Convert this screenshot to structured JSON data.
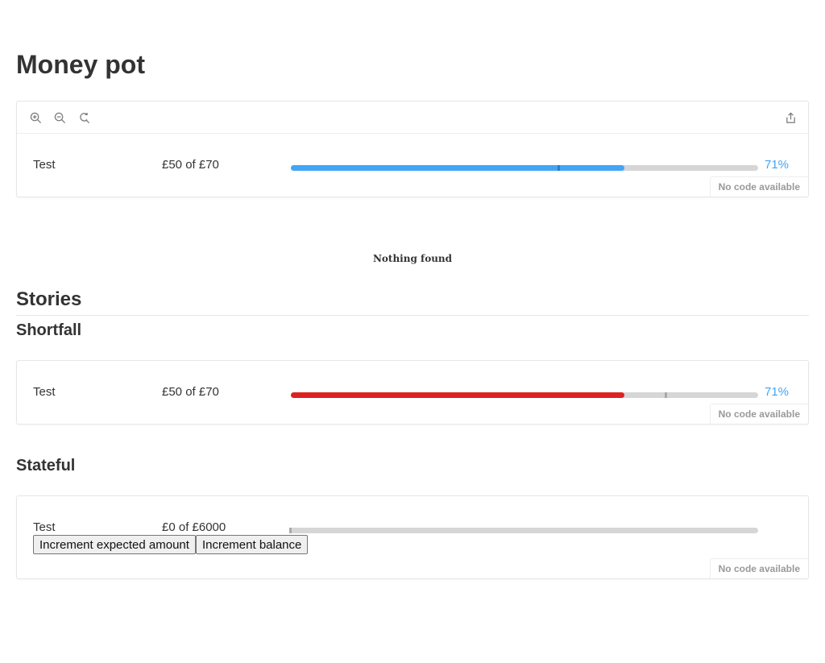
{
  "page": {
    "title": "Money pot"
  },
  "toolbar": {
    "icons": [
      "zoom-in-icon",
      "zoom-out-icon",
      "reset-zoom-icon",
      "share-icon"
    ]
  },
  "preview": {
    "label": "Test",
    "amount": "£50 of £70",
    "percent": "71%",
    "progress": 0.714,
    "marker": 0.57,
    "fill_color": "#42a5f5",
    "marker_color": "#2a7fc4",
    "code_tag": "No code available"
  },
  "empty": {
    "text": "Nothing found"
  },
  "stories": {
    "heading": "Stories",
    "shortfall": {
      "heading": "Shortfall",
      "label": "Test",
      "amount": "£50 of £70",
      "percent": "71%",
      "progress": 0.714,
      "marker": 0.8,
      "fill_color": "#dd2222",
      "marker_color": "#aaaaaa",
      "code_tag": "No code available"
    },
    "stateful": {
      "heading": "Stateful",
      "label": "Test",
      "amount": "£0 of £6000",
      "progress": 0,
      "marker": 0,
      "marker_color": "#aaaaaa",
      "increment_expected_label": "Increment expected amount",
      "increment_balance_label": "Increment balance",
      "code_tag": "No code available"
    }
  },
  "colors": {
    "percent_blue": "#42a5f5",
    "bar_track": "#d6d6d6"
  }
}
